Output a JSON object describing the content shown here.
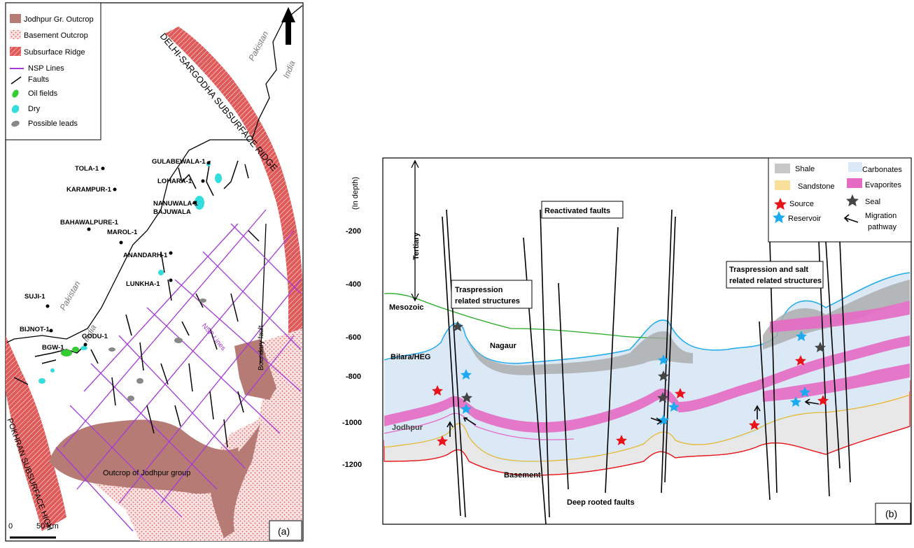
{
  "panel_a": {
    "legend": [
      {
        "label": "Jodhpur Gr. Outcrop",
        "icon": "brown-fill"
      },
      {
        "label": "Basement Outcrop",
        "icon": "pink-dot-fill"
      },
      {
        "label": "Subsurface Ridge",
        "icon": "red-hatch-fill"
      },
      {
        "label": "NSP Lines",
        "icon": "purple-line"
      },
      {
        "label": "Faults",
        "icon": "black-line"
      },
      {
        "label": "Oil fields",
        "icon": "green-blob"
      },
      {
        "label": "Dry",
        "icon": "cyan-blob"
      },
      {
        "label": "Possible leads",
        "icon": "gray-blob"
      }
    ],
    "ridge_delhi": "DELHI-SARGODHA SUBSURFACE RIDGE",
    "ridge_pokhran": "POKHRAN SUBSURFACE HIGH",
    "country_pakistan": "Pakistan",
    "country_india": "India",
    "wells": [
      "TOLA-1",
      "KARAMPUR-1",
      "BAHAWALPURE-1",
      "MAROL-1",
      "SUJI-1",
      "BIJNOT-1",
      "GODU-1",
      "BGW-1",
      "GULABEWALA-1",
      "LOHARA-1",
      "NANUWALA-1",
      "BAJUWALA",
      "ANANDARH-1",
      "LUNKHA-1"
    ],
    "nsp_label": "NSP Lines",
    "boundary_fault": "Boundary fault",
    "outcrop_label": "Outcrop of Jodhpur group",
    "scale_zero": "0",
    "scale_km": "50 Km",
    "panel_tag": "(a)"
  },
  "panel_b": {
    "y_axis_title": "(In depth)",
    "y_ticks": [
      "-200",
      "-400",
      "-600",
      "-800",
      "-1000",
      "-1200"
    ],
    "tertiary": "Tertiary",
    "mesozoic": "Mesozoic",
    "bilara": "Bilara/HEG",
    "jodhpur": "Jodhpur",
    "nagaur": "Nagaur",
    "basement": "Basement",
    "reactivated_faults": "Reactivated faults",
    "deep_faults": "Deep rooted faults",
    "traspression_1": [
      "Traspression",
      "related structures"
    ],
    "traspression_2": [
      "Traspression and salt",
      "related related structures"
    ],
    "legend": {
      "shale": "Shale",
      "carbonates": "Carbonates",
      "sandstone": "Sandstone",
      "evaporites": "Evaporites",
      "source": "Source",
      "seal": "Seal",
      "reservoir": "Reservoir",
      "migration": [
        "Migration",
        "pathway"
      ]
    },
    "panel_tag": "(b)"
  },
  "colors": {
    "jodhpur_outcrop": "#b57b74",
    "ridge": "#e05a5a",
    "nsp": "#a43ad6",
    "oil": "#33cc33",
    "dry": "#33dddd",
    "lead": "#888888",
    "carbonates": "#dbe8f5",
    "evaporites": "#e56ac4",
    "shale": "#9a9a9a",
    "sandstone": "#f8df9a",
    "source": "#e8141a",
    "reservoir": "#1eaaf0",
    "seal": "#444444"
  }
}
